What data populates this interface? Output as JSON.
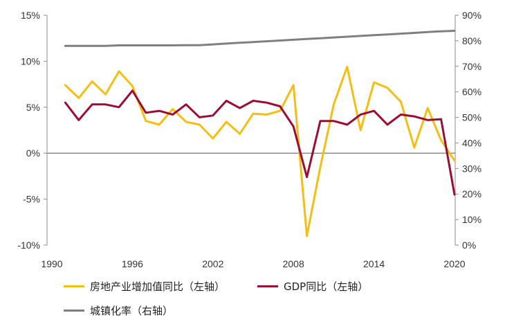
{
  "chart_data": {
    "type": "line",
    "x": [
      1991,
      1992,
      1993,
      1994,
      1995,
      1996,
      1997,
      1998,
      1999,
      2000,
      2001,
      2002,
      2003,
      2004,
      2005,
      2006,
      2007,
      2008,
      2009,
      2010,
      2011,
      2012,
      2013,
      2014,
      2015,
      2016,
      2017,
      2018,
      2019,
      2020
    ],
    "series": [
      {
        "name": "房地产业增加值同比（左轴）",
        "axis": "left",
        "color": "#F5BE12",
        "values": [
          7.4,
          6.0,
          7.8,
          6.4,
          8.9,
          7.3,
          3.5,
          3.1,
          4.8,
          3.4,
          3.1,
          1.6,
          3.4,
          2.1,
          4.3,
          4.2,
          4.6,
          7.4,
          -9.0,
          -1.5,
          5.3,
          9.4,
          2.5,
          7.7,
          7.1,
          5.6,
          0.6,
          4.9,
          1.4,
          -0.8
        ]
      },
      {
        "name": "GDP同比（左轴）",
        "axis": "left",
        "color": "#9B0B32",
        "values": [
          5.5,
          3.6,
          5.3,
          5.3,
          5.0,
          6.8,
          4.4,
          4.6,
          4.2,
          5.3,
          3.9,
          4.1,
          5.7,
          4.9,
          5.7,
          5.5,
          5.1,
          2.9,
          -2.6,
          3.5,
          3.5,
          3.1,
          4.2,
          4.6,
          3.1,
          4.2,
          4.0,
          3.6,
          3.7,
          -4.5
        ]
      },
      {
        "name": "城镇化率（右轴）",
        "axis": "right",
        "color": "#7F7F7F",
        "values": [
          78,
          78,
          78,
          78,
          78.2,
          78.2,
          78.2,
          78.2,
          78.2,
          78.3,
          78.3,
          78.6,
          78.9,
          79.2,
          79.5,
          79.8,
          80.1,
          80.4,
          80.7,
          81.0,
          81.3,
          81.6,
          81.9,
          82.2,
          82.5,
          82.8,
          83.1,
          83.4,
          83.7,
          83.9
        ]
      }
    ],
    "y_left": {
      "min": -10,
      "max": 15,
      "ticks": [
        15,
        10,
        5,
        0,
        -5,
        -10
      ],
      "tick_labels": [
        "15%",
        "10%",
        "5%",
        "0%",
        "-5%",
        "-10%"
      ]
    },
    "y_right": {
      "min": 0,
      "max": 90,
      "ticks": [
        90,
        80,
        70,
        60,
        50,
        40,
        30,
        20,
        10,
        0
      ],
      "tick_labels": [
        "90%",
        "80%",
        "70%",
        "60%",
        "50%",
        "40%",
        "30%",
        "20%",
        "10%",
        "0%"
      ]
    },
    "x_axis": {
      "min": 1990,
      "max": 2020,
      "ticks": [
        1990,
        1996,
        2002,
        2008,
        2014,
        2020
      ],
      "tick_labels": [
        "1990",
        "1996",
        "2002",
        "2008",
        "2014",
        "2020"
      ]
    },
    "grid": false,
    "legend_position": "bottom"
  },
  "legend": {
    "items": [
      {
        "label": "房地产业增加值同比（左轴）",
        "color": "#F5BE12"
      },
      {
        "label": "GDP同比（左轴）",
        "color": "#9B0B32"
      },
      {
        "label": "城镇化率（右轴）",
        "color": "#7F7F7F"
      }
    ]
  }
}
